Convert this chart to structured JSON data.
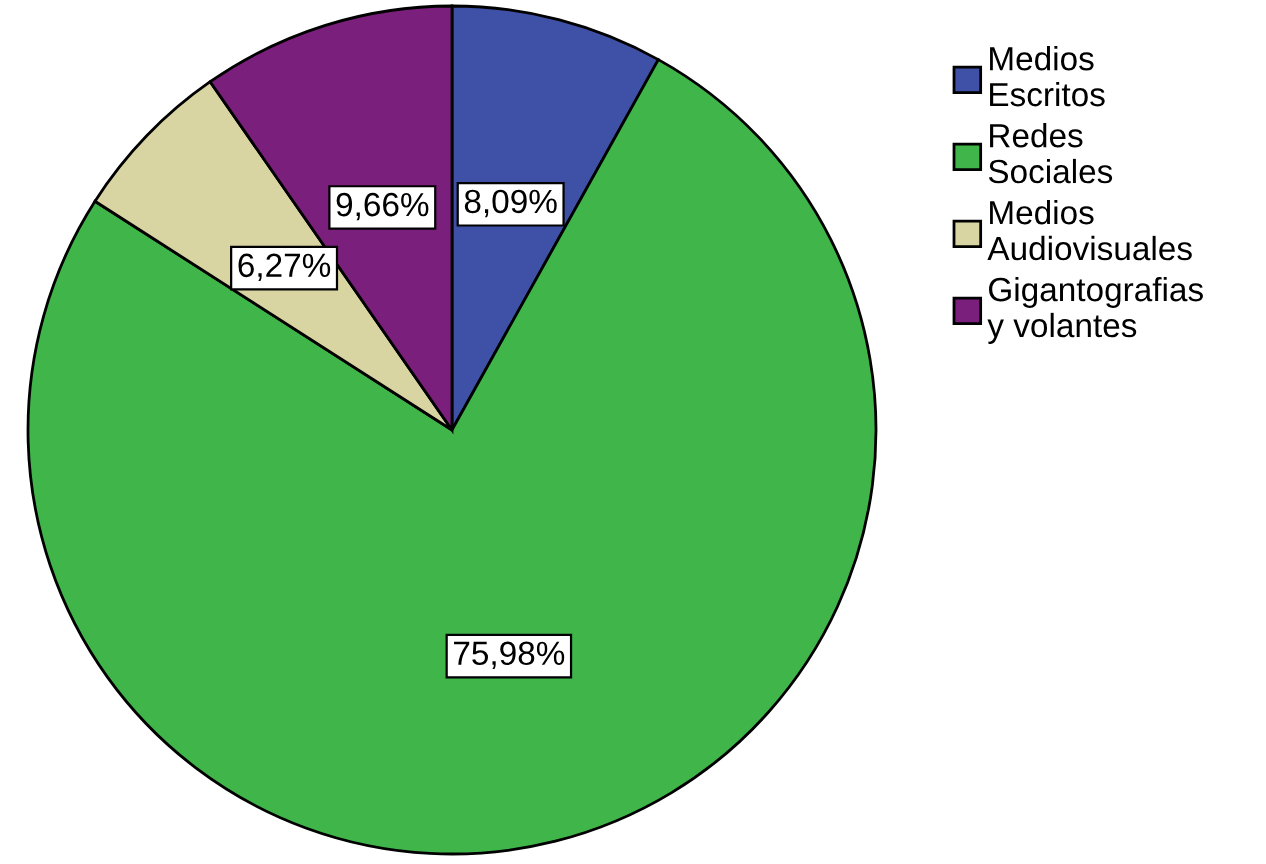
{
  "chart_data": {
    "type": "pie",
    "categories": [
      "Medios\nEscritos",
      "Redes\nSociales",
      "Medios\nAudiovisuales",
      "Gigantografias\ny volantes"
    ],
    "values": [
      8.09,
      75.98,
      6.27,
      9.66
    ],
    "colors": [
      "#3f51a6",
      "#3fb54a",
      "#d9d5a3",
      "#7b1f7c"
    ],
    "value_labels": [
      "8,09%",
      "75,98%",
      "6,27%",
      "9,66%"
    ],
    "legend": "top right"
  }
}
